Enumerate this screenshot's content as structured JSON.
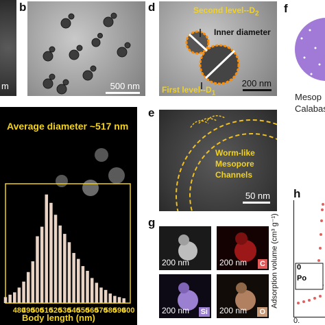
{
  "panel_labels": {
    "b": "b",
    "d": "d",
    "e": "e",
    "f": "f",
    "g": "g",
    "h": "h"
  },
  "panel_a_partial": {
    "scale_label": "m"
  },
  "panel_b": {
    "scale_label": "500 nm"
  },
  "panel_d": {
    "second_level": "Second level--D",
    "second_sub": "2",
    "inner_diameter": "Inner diameter",
    "first_level": "First level--D",
    "first_sub": "1",
    "scale_label": "200 nm"
  },
  "panel_e": {
    "annotation_line1": "Worm-like",
    "annotation_line2": "Mesopore",
    "annotation_line3": "Channels",
    "scale_label": "50 nm"
  },
  "panel_f": {
    "caption_line1": "Mesop",
    "caption_line2": "Calabas",
    "sphere_color": "#a07ad6"
  },
  "panel_c": {
    "title": "Average diameter  ~517 nm"
  },
  "panel_g": {
    "maps": [
      {
        "label": "200 nm",
        "tag": "",
        "color": "#bdbdbd"
      },
      {
        "label": "200 nm",
        "tag": "C",
        "color": "#cc2222"
      },
      {
        "label": "200 nm",
        "tag": "Si",
        "color": "#9b7fd0"
      },
      {
        "label": "200 nm",
        "tag": "O",
        "color": "#b08060"
      }
    ]
  },
  "panel_h": {
    "ylabel": "Adsorption volume (cm³ g⁻¹)",
    "inset_label": "Po",
    "inset_zero": "0",
    "xtick": "0."
  },
  "chart_data": {
    "type": "bar",
    "title": "Average diameter  ~517 nm",
    "xlabel": "Body length (nm)",
    "ylabel": "",
    "x_ticks": [
      "480",
      "490",
      "500",
      "510",
      "520",
      "530",
      "540",
      "550",
      "560",
      "570",
      "580",
      "590",
      "600"
    ],
    "xlim": [
      465,
      602
    ],
    "ylim": [
      0,
      100
    ],
    "categories": [
      465,
      470,
      475,
      480,
      485,
      490,
      495,
      500,
      505,
      510,
      515,
      520,
      525,
      530,
      535,
      540,
      545,
      550,
      555,
      560,
      565,
      570,
      575,
      580,
      585,
      590,
      595
    ],
    "values": [
      5,
      7,
      9,
      13,
      18,
      26,
      35,
      56,
      64,
      91,
      84,
      74,
      65,
      58,
      51,
      42,
      37,
      31,
      27,
      21,
      17,
      13,
      11,
      8,
      6,
      5,
      4
    ]
  }
}
